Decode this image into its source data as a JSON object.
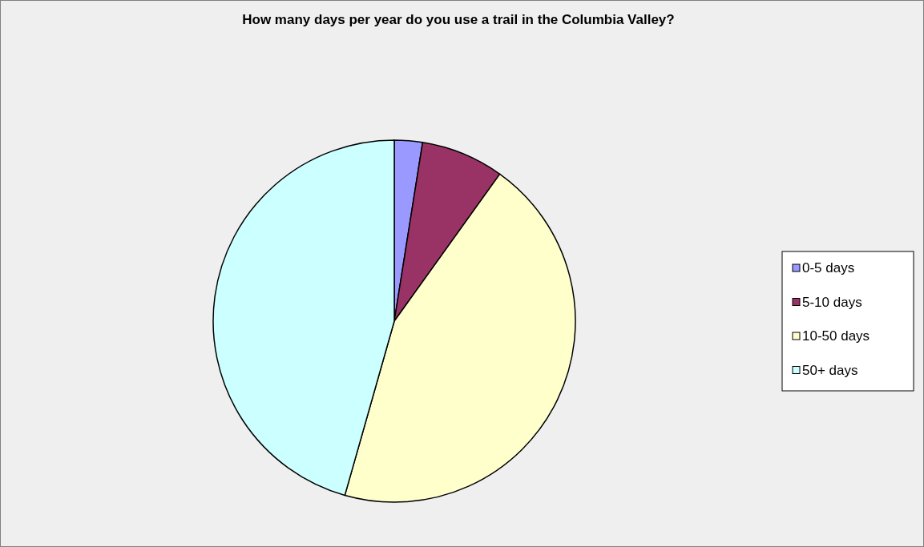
{
  "chart_data": {
    "type": "pie",
    "title": "How many days per year do you use a trail in the Columbia Valley?",
    "categories": [
      "0-5 days",
      "5-10 days",
      "10-50 days",
      "50+ days"
    ],
    "values": [
      2.5,
      7.4,
      44.5,
      45.6
    ],
    "colors": [
      "#9999ff",
      "#993366",
      "#ffffcc",
      "#ccffff"
    ],
    "legend": "right"
  }
}
